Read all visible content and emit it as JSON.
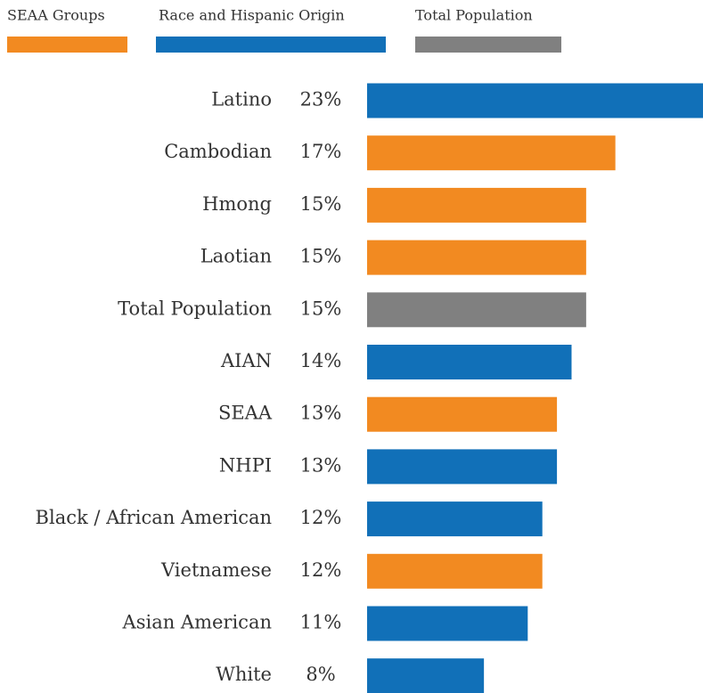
{
  "chart_data": {
    "type": "bar",
    "orientation": "horizontal",
    "categories": [
      "Latino",
      "Cambodian",
      "Hmong",
      "Laotian",
      "Total Population",
      "AIAN",
      "SEAA",
      "NHPI",
      "Black / African American",
      "Vietnamese",
      "Asian American",
      "White"
    ],
    "series": [
      {
        "name": "SEAA Groups",
        "color": "#f28a21",
        "values": [
          null,
          17,
          15,
          15,
          null,
          null,
          13,
          null,
          null,
          12,
          null,
          null
        ],
        "value_labels": [
          null,
          "17%",
          "15%",
          "15%",
          null,
          null,
          "13%",
          null,
          null,
          "12%",
          null,
          null
        ]
      },
      {
        "name": "Race and Hispanic Origin",
        "color": "#1170b8",
        "values": [
          23,
          null,
          null,
          null,
          null,
          14,
          null,
          13,
          12,
          null,
          11,
          8
        ],
        "value_labels": [
          "23%",
          null,
          null,
          null,
          null,
          "14%",
          null,
          "13%",
          "12%",
          null,
          "11%",
          "8%"
        ]
      },
      {
        "name": "Total Population",
        "color": "#808080",
        "values": [
          null,
          null,
          null,
          null,
          15,
          null,
          null,
          null,
          null,
          null,
          null,
          null
        ],
        "value_labels": [
          null,
          null,
          null,
          null,
          "15%",
          null,
          null,
          null,
          null,
          null,
          null,
          null
        ]
      }
    ]
  }
}
